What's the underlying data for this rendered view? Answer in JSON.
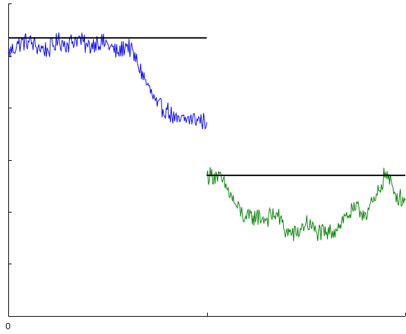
{
  "chart_data": {
    "type": "line",
    "title": "",
    "xlabel": "",
    "ylabel": "",
    "grid": false,
    "legend": "none",
    "xlim": [
      0,
      2
    ],
    "ylim": [
      0,
      1
    ],
    "x_tick_values": [
      0,
      1,
      2
    ],
    "x_tick_labels": [
      "0",
      "",
      ""
    ],
    "y_tick_values": [
      0.167,
      0.333,
      0.5,
      0.667,
      0.833,
      1.0
    ],
    "series": [
      {
        "color": "#0000ff",
        "x": [
          0.0,
          0.05,
          0.1,
          0.15,
          0.2,
          0.25,
          0.3,
          0.35,
          0.4,
          0.45,
          0.5,
          0.55,
          0.6,
          0.65,
          0.7,
          0.75,
          0.8,
          0.85,
          0.9,
          0.95,
          1.0
        ],
        "y": [
          0.84,
          0.87,
          0.88,
          0.86,
          0.85,
          0.88,
          0.87,
          0.89,
          0.86,
          0.88,
          0.87,
          0.84,
          0.87,
          0.81,
          0.74,
          0.67,
          0.66,
          0.62,
          0.63,
          0.63,
          0.62
        ]
      },
      {
        "color": "#008000",
        "x": [
          1.0,
          1.05,
          1.1,
          1.15,
          1.2,
          1.25,
          1.3,
          1.35,
          1.4,
          1.45,
          1.5,
          1.55,
          1.6,
          1.65,
          1.7,
          1.75,
          1.8,
          1.85,
          1.9,
          1.95,
          2.0
        ],
        "y": [
          0.45,
          0.45,
          0.41,
          0.35,
          0.31,
          0.32,
          0.31,
          0.33,
          0.27,
          0.26,
          0.3,
          0.27,
          0.26,
          0.28,
          0.32,
          0.34,
          0.33,
          0.37,
          0.46,
          0.39,
          0.37
        ]
      }
    ],
    "reference_lines": [
      {
        "color": "#000000",
        "x": [
          0,
          1
        ],
        "y": 0.89
      },
      {
        "color": "#000000",
        "x": [
          1,
          2
        ],
        "y": 0.45
      }
    ]
  }
}
